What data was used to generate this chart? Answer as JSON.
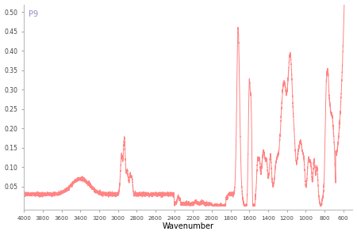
{
  "title": "",
  "xlabel": "Wavenumber",
  "ylabel": "",
  "label": "P9",
  "label_color": "#9988cc",
  "line_color": "#ff7777",
  "background_color": "#ffffff",
  "xlim": [
    4000,
    500
  ],
  "ylim": [
    -0.01,
    0.52
  ],
  "yticks": [
    0.05,
    0.1,
    0.15,
    0.2,
    0.25,
    0.3,
    0.35,
    0.4,
    0.45,
    0.5
  ],
  "xticks": [
    4000,
    3800,
    3600,
    3400,
    3200,
    3000,
    2800,
    2600,
    2400,
    2200,
    2000,
    1800,
    1600,
    1400,
    1200,
    1000,
    800,
    600
  ]
}
